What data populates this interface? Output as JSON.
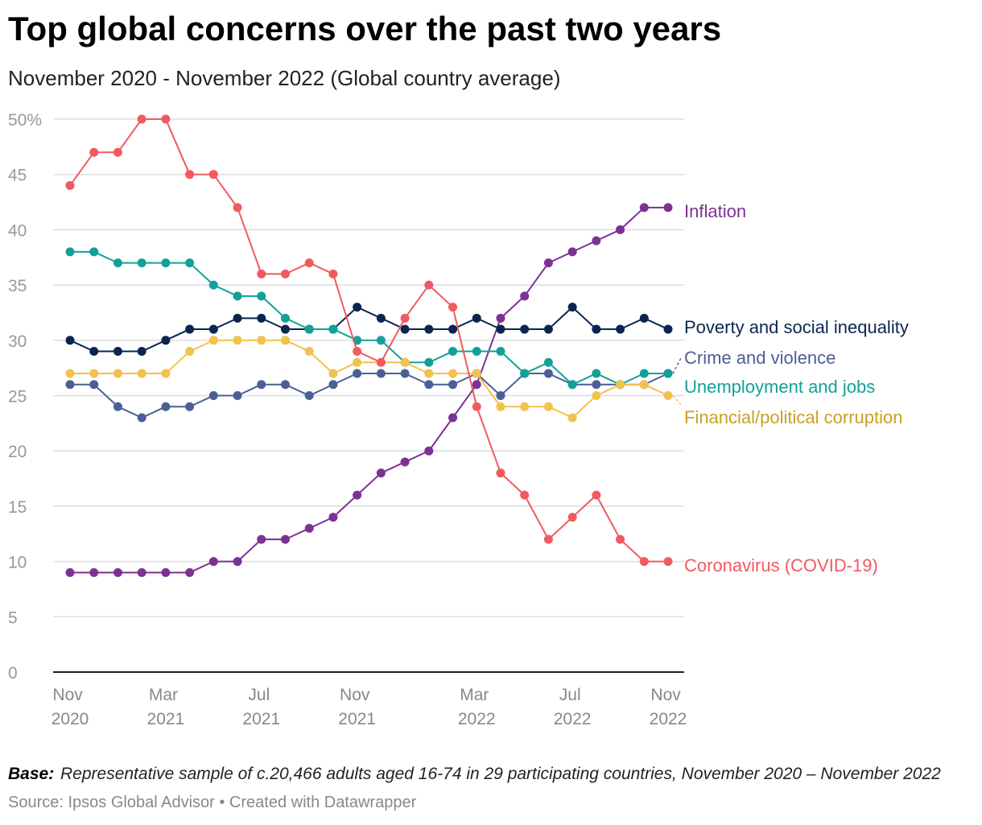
{
  "chart_data": {
    "type": "line",
    "title": "Top global concerns over the past two years",
    "subtitle": "November 2020 - November 2022 (Global country average)",
    "note_label": "Base:",
    "note": "Representative sample of c.20,466 adults aged 16-74 in 29 participating countries, November 2020 – November 2022",
    "source": "Source: Ipsos Global Advisor • Created with Datawrapper",
    "categories": [
      "Nov 2020",
      null,
      null,
      null,
      "Mar 2021",
      null,
      null,
      null,
      "Jul 2021",
      null,
      null,
      null,
      "Nov 2021",
      null,
      null,
      null,
      null,
      "Mar 2022",
      null,
      null,
      null,
      "Jul 2022",
      null,
      null,
      null,
      "Nov 2022"
    ],
    "ylim": [
      0,
      50
    ],
    "yticks": [
      0,
      5,
      10,
      15,
      20,
      25,
      30,
      35,
      40,
      45,
      {
        "value": 50,
        "label": "50%"
      }
    ],
    "grid": true,
    "series": [
      {
        "name": "Inflation",
        "color": "#7b3294",
        "label_color": "#7b3294",
        "values": [
          9,
          9,
          9,
          9,
          9,
          9,
          10,
          10,
          12,
          12,
          13,
          14,
          16,
          18,
          19,
          20,
          23,
          26,
          32,
          34,
          37,
          38,
          39,
          40,
          42,
          42
        ]
      },
      {
        "name": "Poverty and social inequality",
        "color": "#0b2550",
        "label_color": "#0b2550",
        "values": [
          30,
          29,
          29,
          29,
          30,
          31,
          31,
          32,
          32,
          31,
          31,
          31,
          33,
          32,
          31,
          31,
          31,
          32,
          31,
          31,
          31,
          33,
          31,
          31,
          32,
          31
        ]
      },
      {
        "name": "Crime and violence",
        "color": "#4a5f95",
        "label_color": "#4a5f95",
        "values": [
          26,
          26,
          24,
          23,
          24,
          24,
          25,
          25,
          26,
          26,
          25,
          26,
          27,
          27,
          27,
          26,
          26,
          27,
          25,
          27,
          27,
          26,
          26,
          26,
          26,
          27
        ]
      },
      {
        "name": "Unemployment and jobs",
        "color": "#14a09a",
        "label_color": "#14a09a",
        "values": [
          38,
          38,
          37,
          37,
          37,
          37,
          35,
          34,
          34,
          32,
          31,
          31,
          30,
          30,
          28,
          28,
          29,
          29,
          29,
          27,
          28,
          26,
          27,
          26,
          27,
          27
        ]
      },
      {
        "name": "Financial/political corruption",
        "color": "#f2c14e",
        "label_color": "#c9a021",
        "values": [
          27,
          27,
          27,
          27,
          27,
          29,
          30,
          30,
          30,
          30,
          29,
          27,
          28,
          28,
          28,
          27,
          27,
          27,
          24,
          24,
          24,
          23,
          25,
          26,
          26,
          25
        ]
      },
      {
        "name": "Coronavirus (COVID-19)",
        "color": "#f05a5f",
        "label_color": "#f05a5f",
        "values": [
          44,
          47,
          47,
          50,
          50,
          45,
          45,
          42,
          36,
          36,
          37,
          36,
          29,
          28,
          32,
          35,
          33,
          24,
          18,
          16,
          12,
          14,
          16,
          12,
          10,
          10
        ]
      }
    ]
  }
}
